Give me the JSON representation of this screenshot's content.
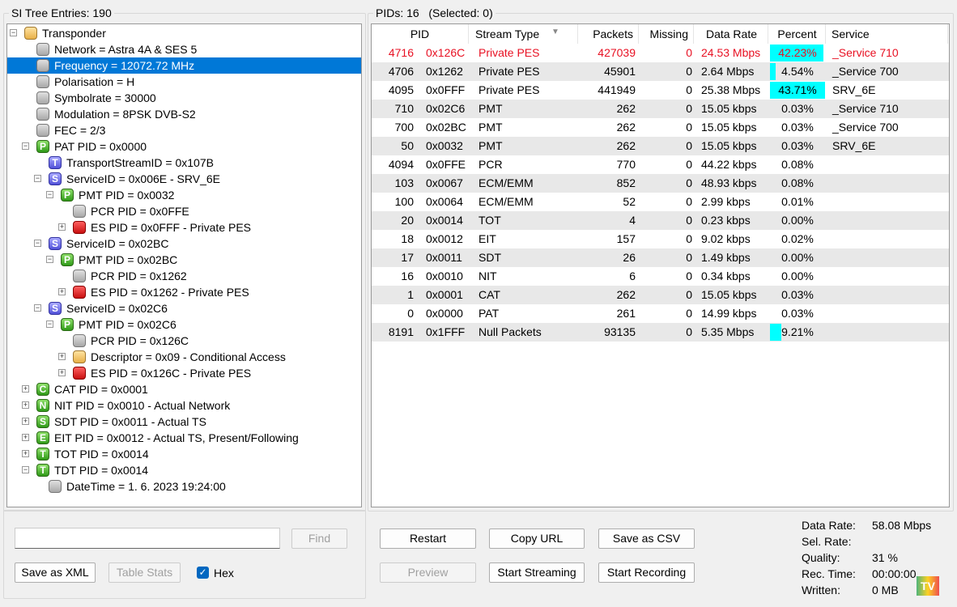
{
  "left": {
    "title": "SI Tree Entries: 190",
    "tree": [
      {
        "l": 0,
        "exp": "-",
        "icon": "gold",
        "letter": "",
        "text": "Transponder"
      },
      {
        "l": 1,
        "icon": "gray",
        "text": "Network = Astra 4A & SES 5"
      },
      {
        "l": 1,
        "icon": "gray",
        "text": "Frequency = 12072.72 MHz",
        "sel": true
      },
      {
        "l": 1,
        "icon": "gray",
        "text": "Polarisation = H"
      },
      {
        "l": 1,
        "icon": "gray",
        "text": "Symbolrate = 30000"
      },
      {
        "l": 1,
        "icon": "gray",
        "text": "Modulation = 8PSK DVB-S2"
      },
      {
        "l": 1,
        "icon": "gray",
        "text": "FEC = 2/3"
      },
      {
        "l": 1,
        "exp": "-",
        "icon": "green",
        "letter": "P",
        "text": "PAT PID = 0x0000"
      },
      {
        "l": 2,
        "icon": "blue",
        "letter": "T",
        "text": "TransportStreamID = 0x107B"
      },
      {
        "l": 2,
        "exp": "-",
        "icon": "blue",
        "letter": "S",
        "text": "ServiceID = 0x006E - SRV_6E"
      },
      {
        "l": 3,
        "exp": "-",
        "icon": "green",
        "letter": "P",
        "text": "PMT PID = 0x0032"
      },
      {
        "l": 4,
        "icon": "gray",
        "text": "PCR PID = 0x0FFE"
      },
      {
        "l": 4,
        "exp": "+",
        "icon": "red",
        "text": "ES PID = 0x0FFF - Private PES"
      },
      {
        "l": 2,
        "exp": "-",
        "icon": "blue",
        "letter": "S",
        "text": "ServiceID = 0x02BC"
      },
      {
        "l": 3,
        "exp": "-",
        "icon": "green",
        "letter": "P",
        "text": "PMT PID = 0x02BC"
      },
      {
        "l": 4,
        "icon": "gray",
        "text": "PCR PID = 0x1262"
      },
      {
        "l": 4,
        "exp": "+",
        "icon": "red",
        "text": "ES PID = 0x1262 - Private PES"
      },
      {
        "l": 2,
        "exp": "-",
        "icon": "blue",
        "letter": "S",
        "text": "ServiceID = 0x02C6"
      },
      {
        "l": 3,
        "exp": "-",
        "icon": "green",
        "letter": "P",
        "text": "PMT PID = 0x02C6"
      },
      {
        "l": 4,
        "icon": "gray",
        "text": "PCR PID = 0x126C"
      },
      {
        "l": 4,
        "exp": "+",
        "icon": "gold",
        "text": "Descriptor = 0x09 - Conditional Access"
      },
      {
        "l": 4,
        "exp": "+",
        "icon": "red",
        "text": "ES PID = 0x126C - Private PES"
      },
      {
        "l": 1,
        "exp": "+",
        "icon": "green",
        "letter": "C",
        "text": "CAT PID = 0x0001"
      },
      {
        "l": 1,
        "exp": "+",
        "icon": "green",
        "letter": "N",
        "text": "NIT PID = 0x0010 - Actual Network"
      },
      {
        "l": 1,
        "exp": "+",
        "icon": "green",
        "letter": "S",
        "text": "SDT PID = 0x0011 - Actual TS"
      },
      {
        "l": 1,
        "exp": "+",
        "icon": "green",
        "letter": "E",
        "text": "EIT PID = 0x0012 - Actual TS, Present/Following"
      },
      {
        "l": 1,
        "exp": "+",
        "icon": "green",
        "letter": "T",
        "text": "TOT PID = 0x0014"
      },
      {
        "l": 1,
        "exp": "-",
        "icon": "green",
        "letter": "T",
        "text": "TDT PID = 0x0014"
      },
      {
        "l": 2,
        "icon": "gray",
        "text": "DateTime = 1. 6. 2023 19:24:00"
      }
    ],
    "search_value": "",
    "find": "Find",
    "save_xml": "Save as XML",
    "table_stats": "Table Stats",
    "hex": "Hex",
    "hex_checked": true
  },
  "right": {
    "title": "PIDs: 16   (Selected: 0)",
    "columns": [
      "PID",
      "Stream Type",
      "Packets",
      "Missing",
      "Data Rate",
      "Percent",
      "Service"
    ],
    "rows": [
      [
        "4716",
        "0x126C",
        "Private PES",
        "427039",
        "0",
        "24.53 Mbps",
        42.23,
        "_Service 710",
        true
      ],
      [
        "4706",
        "0x1262",
        "Private PES",
        "45901",
        "0",
        "2.64 Mbps",
        4.54,
        "_Service 700",
        false
      ],
      [
        "4095",
        "0x0FFF",
        "Private PES",
        "441949",
        "0",
        "25.38 Mbps",
        43.71,
        "SRV_6E",
        false
      ],
      [
        "710",
        "0x02C6",
        "PMT",
        "262",
        "0",
        "15.05 kbps",
        0.03,
        "_Service 710",
        false
      ],
      [
        "700",
        "0x02BC",
        "PMT",
        "262",
        "0",
        "15.05 kbps",
        0.03,
        "_Service 700",
        false
      ],
      [
        "50",
        "0x0032",
        "PMT",
        "262",
        "0",
        "15.05 kbps",
        0.03,
        "SRV_6E",
        false
      ],
      [
        "4094",
        "0x0FFE",
        "PCR",
        "770",
        "0",
        "44.22 kbps",
        0.08,
        "",
        false
      ],
      [
        "103",
        "0x0067",
        "ECM/EMM",
        "852",
        "0",
        "48.93 kbps",
        0.08,
        "",
        false
      ],
      [
        "100",
        "0x0064",
        "ECM/EMM",
        "52",
        "0",
        "2.99 kbps",
        0.01,
        "",
        false
      ],
      [
        "20",
        "0x0014",
        "TOT",
        "4",
        "0",
        "0.23 kbps",
        0.0,
        "",
        false
      ],
      [
        "18",
        "0x0012",
        "EIT",
        "157",
        "0",
        "9.02 kbps",
        0.02,
        "",
        false
      ],
      [
        "17",
        "0x0011",
        "SDT",
        "26",
        "0",
        "1.49 kbps",
        0.0,
        "",
        false
      ],
      [
        "16",
        "0x0010",
        "NIT",
        "6",
        "0",
        "0.34 kbps",
        0.0,
        "",
        false
      ],
      [
        "1",
        "0x0001",
        "CAT",
        "262",
        "0",
        "15.05 kbps",
        0.03,
        "",
        false
      ],
      [
        "0",
        "0x0000",
        "PAT",
        "261",
        "0",
        "14.99 kbps",
        0.03,
        "",
        false
      ],
      [
        "8191",
        "0x1FFF",
        "Null Packets",
        "93135",
        "0",
        "5.35 Mbps",
        9.21,
        "",
        false
      ]
    ],
    "buttons": {
      "restart": "Restart",
      "copy_url": "Copy URL",
      "save_csv": "Save as CSV",
      "preview": "Preview",
      "start_streaming": "Start Streaming",
      "start_recording": "Start Recording"
    },
    "stats": [
      [
        "Data Rate:",
        "58.08 Mbps"
      ],
      [
        "Sel. Rate:",
        ""
      ],
      [
        "Quality:",
        "31 %"
      ],
      [
        "Rec. Time:",
        "00:00:00"
      ],
      [
        "Written:",
        "0 MB"
      ]
    ]
  },
  "colors": {
    "selection": "#0078d7",
    "highlight_row": "#e81123",
    "percent_bar": "#00ffff",
    "alt_row": "#e8e8e8"
  },
  "watermark": "PROTV NET.UA"
}
